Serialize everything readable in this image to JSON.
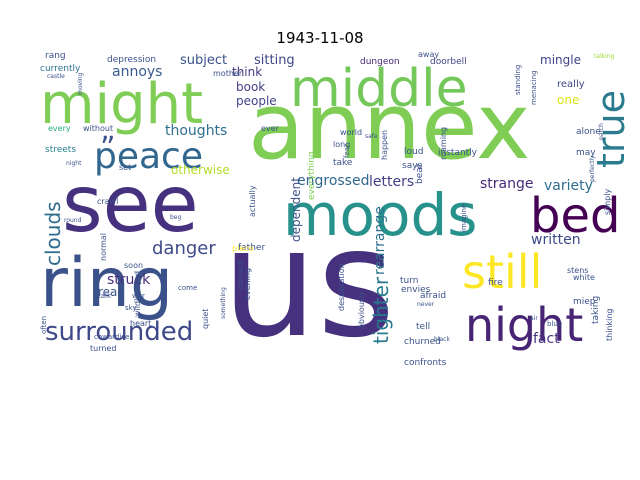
{
  "title": "1943-11-08",
  "words": [
    {
      "text": "us",
      "color": "#46317e"
    },
    {
      "text": "annex",
      "color": "#7fcd54"
    },
    {
      "text": "see",
      "color": "#46317e"
    },
    {
      "text": "ring",
      "color": "#3b518a"
    },
    {
      "text": "might",
      "color": "#7fcd54"
    },
    {
      "text": "middle",
      "color": "#74c85a"
    },
    {
      "text": "moods",
      "color": "#27918c"
    },
    {
      "text": "bed",
      "color": "#440154"
    },
    {
      "text": "still",
      "color": "#fde725"
    },
    {
      "text": "night",
      "color": "#482475"
    },
    {
      "text": "true",
      "color": "#2a7b8e"
    },
    {
      "text": "peace",
      "color": "#31668e"
    },
    {
      "text": "surrounded",
      "color": "#3e4989"
    },
    {
      "text": "clouds",
      "color": "#2f6c8e"
    },
    {
      "text": "tighter",
      "color": "#2a788e"
    },
    {
      "text": "danger",
      "color": "#3e4a89"
    },
    {
      "text": "engrossed",
      "color": "#31688e"
    },
    {
      "text": "rearrange",
      "color": "#2c728e"
    },
    {
      "text": "letters",
      "color": "#433e85"
    },
    {
      "text": "strange",
      "color": "#472a7a"
    },
    {
      "text": "variety",
      "color": "#2e6e8e"
    },
    {
      "text": "written",
      "color": "#3e4a89"
    },
    {
      "text": "fact",
      "color": "#463480"
    },
    {
      "text": "struck",
      "color": "#472d7b"
    },
    {
      "text": "thoughts",
      "color": "#2e6f8e"
    },
    {
      "text": "annoys",
      "color": "#375b8d"
    },
    {
      "text": "subject",
      "color": "#3b528b"
    },
    {
      "text": "sitting",
      "color": "#3f4788"
    },
    {
      "text": "mingle",
      "color": "#414487"
    },
    {
      "text": "people",
      "color": "#404588"
    },
    {
      "text": "think",
      "color": "#443a83"
    },
    {
      "text": "book",
      "color": "#424086"
    },
    {
      "text": "otherwise",
      "color": "#b5de2b"
    },
    {
      "text": "dependent",
      "color": "#3b528b"
    },
    {
      "text": "read",
      "color": "#3a548c"
    },
    {
      "text": "one",
      "color": "#dde318"
    },
    {
      "text": "really",
      "color": "#3f4889"
    },
    {
      "text": "depression",
      "color": "#3b528b"
    },
    {
      "text": "currently",
      "color": "#2d708e"
    },
    {
      "text": "rang",
      "color": "#3a538b"
    },
    {
      "text": "mother",
      "color": "#3b528b"
    },
    {
      "text": "world",
      "color": "#3b528b"
    },
    {
      "text": "dungeon",
      "color": "#482878"
    },
    {
      "text": "away",
      "color": "#3b528b"
    },
    {
      "text": "beat",
      "color": "#3b528b"
    },
    {
      "text": "doorbell",
      "color": "#404688"
    },
    {
      "text": "talking",
      "color": "#a0da39"
    },
    {
      "text": "standing",
      "color": "#3b528b"
    },
    {
      "text": "menacing",
      "color": "#3b528b"
    },
    {
      "text": "castle",
      "color": "#3b528b"
    },
    {
      "text": "moving",
      "color": "#3b528b"
    },
    {
      "text": "without",
      "color": "#3b528b"
    },
    {
      "text": "every",
      "color": "#29af7f"
    },
    {
      "text": "streets",
      "color": "#26828e"
    },
    {
      "text": "night",
      "color": "#3b528b"
    },
    {
      "text": "ever",
      "color": "#3b528b"
    },
    {
      "text": "safe",
      "color": "#3b528b"
    },
    {
      "text": "everything",
      "color": "#7ad151"
    },
    {
      "text": "happen",
      "color": "#3b528b"
    },
    {
      "text": "roaming",
      "color": "#3b528b"
    },
    {
      "text": "instantly",
      "color": "#3b528b"
    },
    {
      "text": "alone",
      "color": "#3b528b"
    },
    {
      "text": "may",
      "color": "#3b528b"
    },
    {
      "text": "patch",
      "color": "#3b528b"
    },
    {
      "text": "set",
      "color": "#3b528b"
    },
    {
      "text": "actually",
      "color": "#3b528b"
    },
    {
      "text": "take",
      "color": "#3b528b"
    },
    {
      "text": "says",
      "color": "#3b528b"
    },
    {
      "text": "loud",
      "color": "#3b528b"
    },
    {
      "text": "long",
      "color": "#3b528b"
    },
    {
      "text": "fear",
      "color": "#3b528b"
    },
    {
      "text": "crawl",
      "color": "#3b528b"
    },
    {
      "text": "father",
      "color": "#3b528b"
    },
    {
      "text": "imagine",
      "color": "#3b528b"
    },
    {
      "text": "round",
      "color": "#3b528b"
    },
    {
      "text": "beg",
      "color": "#3b528b"
    },
    {
      "text": "simply",
      "color": "#3b528b"
    },
    {
      "text": "perfectly",
      "color": "#3b528b"
    },
    {
      "text": "white",
      "color": "#3b528b"
    },
    {
      "text": "soon",
      "color": "#3b528b"
    },
    {
      "text": "normal",
      "color": "#3b528b"
    },
    {
      "text": "place",
      "color": "#fde725"
    },
    {
      "text": "evening",
      "color": "#3b528b"
    },
    {
      "text": "turn",
      "color": "#3b528b"
    },
    {
      "text": "fire",
      "color": "#3b528b"
    },
    {
      "text": "stens",
      "color": "#3b528b"
    },
    {
      "text": "talk",
      "color": "#3b528b"
    },
    {
      "text": "come",
      "color": "#3b528b"
    },
    {
      "text": "war",
      "color": "#3b528b"
    },
    {
      "text": "stomach",
      "color": "#3b528b"
    },
    {
      "text": "afraid",
      "color": "#3b528b"
    },
    {
      "text": "envies",
      "color": "#3b528b"
    },
    {
      "text": "taking",
      "color": "#3b528b"
    },
    {
      "text": "wildly—and",
      "color": "#3b528b"
    },
    {
      "text": "desperation",
      "color": "#3b528b"
    },
    {
      "text": "miep",
      "color": "#3b528b"
    },
    {
      "text": "thinking",
      "color": "#3b528b"
    },
    {
      "text": "heart",
      "color": "#3b528b"
    },
    {
      "text": "obviously",
      "color": "#3b528b"
    },
    {
      "text": "never",
      "color": "#3b528b"
    },
    {
      "text": "sky",
      "color": "#3b528b"
    },
    {
      "text": "quiet",
      "color": "#3b528b"
    },
    {
      "text": "tell",
      "color": "#3b528b"
    },
    {
      "text": "black",
      "color": "#3b528b"
    },
    {
      "text": "blue",
      "color": "#3b528b"
    },
    {
      "text": "cowardice",
      "color": "#3b528b"
    },
    {
      "text": "something",
      "color": "#3b528b"
    },
    {
      "text": "churned",
      "color": "#3b528b"
    },
    {
      "text": "air",
      "color": "#3b528b"
    },
    {
      "text": "often",
      "color": "#3b528b"
    },
    {
      "text": "turned",
      "color": "#3b528b"
    },
    {
      "text": "confronts",
      "color": "#3b528b"
    },
    {
      "text": "”",
      "color": "#3b528b"
    }
  ]
}
